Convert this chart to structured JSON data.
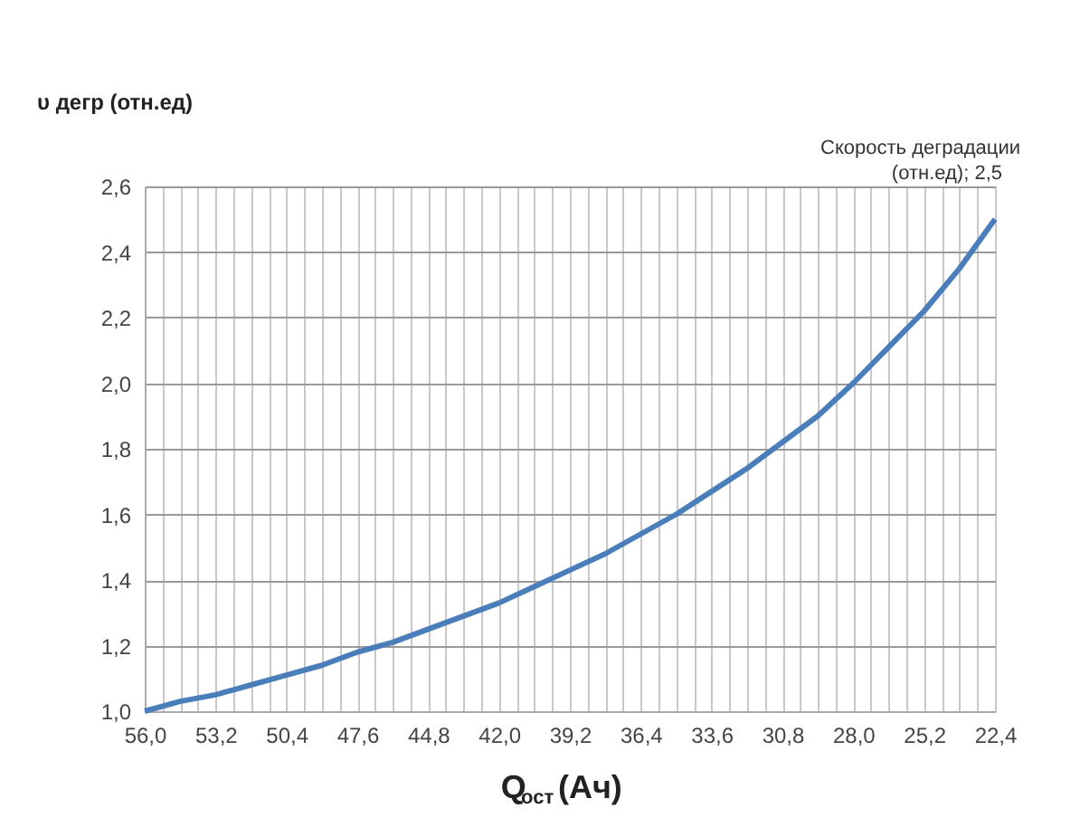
{
  "chart_data": {
    "type": "line",
    "xlabel": "Q$_{ост}$(Ач)",
    "ylabel": "υ дегр (отн.ед)",
    "x": [
      56,
      54.6,
      53.2,
      51.8,
      50.4,
      49,
      47.6,
      46.2,
      44.8,
      43.4,
      42,
      40.6,
      39.2,
      37.8,
      36.4,
      35,
      33.6,
      32.2,
      30.8,
      29.4,
      28,
      26.6,
      25.2,
      23.8,
      22.4
    ],
    "series": [
      {
        "color": "#4a7ebb",
        "values": [
          1.0,
          1.03,
          1.05,
          1.08,
          1.11,
          1.14,
          1.18,
          1.21,
          1.25,
          1.29,
          1.33,
          1.38,
          1.43,
          1.48,
          1.54,
          1.6,
          1.67,
          1.74,
          1.82,
          1.9,
          2.0,
          2.11,
          2.22,
          2.35,
          2.5
        ]
      }
    ],
    "xlim": [
      56,
      22.4
    ],
    "xticks": [
      {
        "value": 56,
        "label": "56,0"
      },
      {
        "value": 55.3,
        "label": null
      },
      {
        "value": 54.6,
        "label": null
      },
      {
        "value": 53.9,
        "label": null
      },
      {
        "value": 53.2,
        "label": "53,2"
      },
      {
        "value": 52.5,
        "label": null
      },
      {
        "value": 51.8,
        "label": null
      },
      {
        "value": 51.1,
        "label": null
      },
      {
        "value": 50.4,
        "label": "50,4"
      },
      {
        "value": 49.7,
        "label": null
      },
      {
        "value": 49,
        "label": null
      },
      {
        "value": 48.3,
        "label": null
      },
      {
        "value": 47.6,
        "label": "47,6"
      },
      {
        "value": 46.9,
        "label": null
      },
      {
        "value": 46.2,
        "label": null
      },
      {
        "value": 45.5,
        "label": null
      },
      {
        "value": 44.8,
        "label": "44,8"
      },
      {
        "value": 44.1,
        "label": null
      },
      {
        "value": 43.4,
        "label": null
      },
      {
        "value": 42.7,
        "label": null
      },
      {
        "value": 42,
        "label": "42,0"
      },
      {
        "value": 41.3,
        "label": null
      },
      {
        "value": 40.6,
        "label": null
      },
      {
        "value": 39.9,
        "label": null
      },
      {
        "value": 39.2,
        "label": "39,2"
      },
      {
        "value": 38.5,
        "label": null
      },
      {
        "value": 37.8,
        "label": null
      },
      {
        "value": 37.1,
        "label": null
      },
      {
        "value": 36.4,
        "label": "36,4"
      },
      {
        "value": 35.7,
        "label": null
      },
      {
        "value": 35,
        "label": null
      },
      {
        "value": 34.3,
        "label": null
      },
      {
        "value": 33.6,
        "label": "33,6"
      },
      {
        "value": 32.9,
        "label": null
      },
      {
        "value": 32.2,
        "label": null
      },
      {
        "value": 31.5,
        "label": null
      },
      {
        "value": 30.8,
        "label": "30,8"
      },
      {
        "value": 30.1,
        "label": null
      },
      {
        "value": 29.4,
        "label": null
      },
      {
        "value": 28.7,
        "label": null
      },
      {
        "value": 28,
        "label": "28,0"
      },
      {
        "value": 27.3,
        "label": null
      },
      {
        "value": 26.6,
        "label": null
      },
      {
        "value": 25.9,
        "label": null
      },
      {
        "value": 25.2,
        "label": "25,2"
      },
      {
        "value": 24.5,
        "label": null
      },
      {
        "value": 23.8,
        "label": null
      },
      {
        "value": 23.1,
        "label": null
      },
      {
        "value": 22.4,
        "label": "22,4"
      }
    ],
    "ylim": [
      1.0,
      2.6
    ],
    "yticks": [
      {
        "value": 1.0,
        "label": "1,0"
      },
      {
        "value": 1.2,
        "label": "1,2"
      },
      {
        "value": 1.4,
        "label": "1,4"
      },
      {
        "value": 1.6,
        "label": "1,6"
      },
      {
        "value": 1.8,
        "label": "1,8"
      },
      {
        "value": 2.0,
        "label": "2,0"
      },
      {
        "value": 2.2,
        "label": "2,2"
      },
      {
        "value": 2.4,
        "label": "2,4"
      },
      {
        "value": 2.6,
        "label": "2,6"
      }
    ],
    "annotations": [
      {
        "text": "Скорость деградации (отн.ед); 2,5",
        "x": 22.4,
        "y": 2.5
      }
    ],
    "grid": true,
    "legend": false,
    "marker": "none",
    "line_style": "solid"
  }
}
